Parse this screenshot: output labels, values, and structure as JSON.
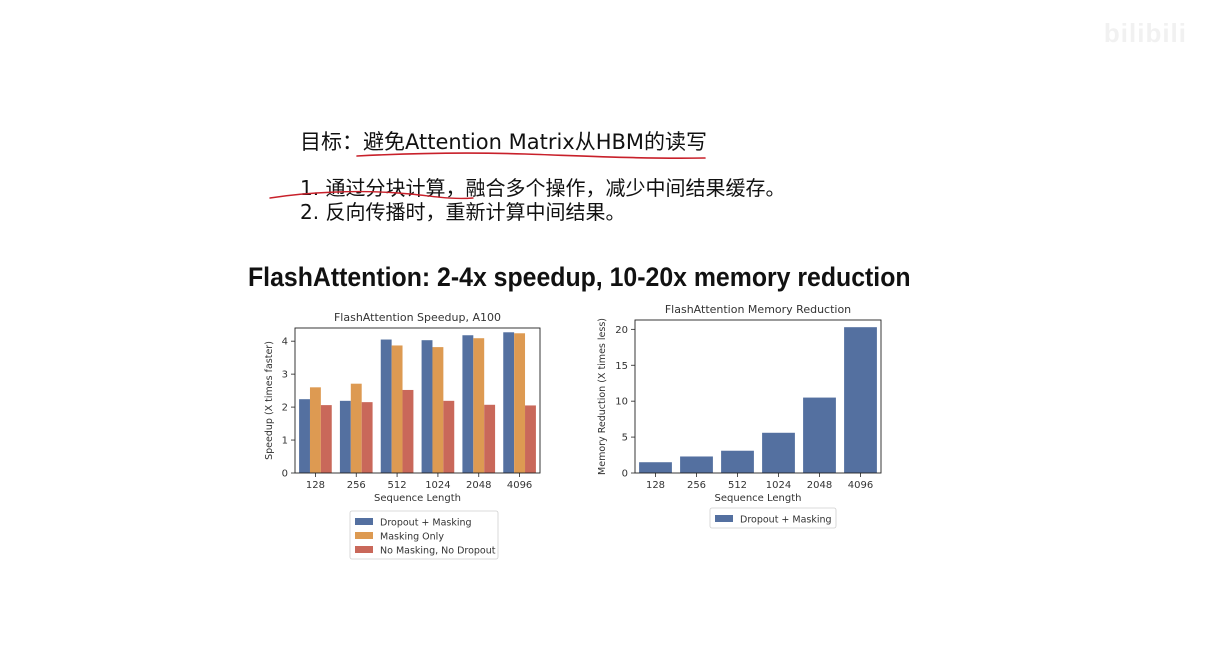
{
  "watermark": "bilibili",
  "notes": {
    "goal_label": "目标：",
    "goal_text": "避免Attention Matrix从HBM的读写",
    "items": [
      "1. 通过分块计算，融合多个操作，减少中间结果缓存。",
      "2. 反向传播时，重新计算中间结果。"
    ]
  },
  "figure_title": "FlashAttention: 2-4x speedup, 10-20x memory reduction",
  "colors": {
    "blue": "#5470a0",
    "orange": "#dd9a52",
    "red": "#c9685a",
    "ink": "#c8202a"
  },
  "chart_data": [
    {
      "type": "bar",
      "title": "FlashAttention Speedup, A100",
      "xlabel": "Sequence Length",
      "ylabel": "Speedup (X times faster)",
      "categories": [
        "128",
        "256",
        "512",
        "1024",
        "2048",
        "4096"
      ],
      "ylim": [
        0,
        4.4
      ],
      "yticks": [
        0,
        1,
        2,
        3,
        4
      ],
      "grid": false,
      "legend_position": "bottom",
      "series": [
        {
          "name": "Dropout + Masking",
          "color": "#5470a0",
          "values": [
            2.24,
            2.19,
            4.05,
            4.03,
            4.18,
            4.27
          ]
        },
        {
          "name": "Masking Only",
          "color": "#dd9a52",
          "values": [
            2.6,
            2.71,
            3.87,
            3.82,
            4.09,
            4.24
          ]
        },
        {
          "name": "No Masking, No Dropout",
          "color": "#c9685a",
          "values": [
            2.06,
            2.15,
            2.52,
            2.19,
            2.07,
            2.05
          ]
        }
      ]
    },
    {
      "type": "bar",
      "title": "FlashAttention Memory Reduction",
      "xlabel": "Sequence Length",
      "ylabel": "Memory Reduction (X times less)",
      "categories": [
        "128",
        "256",
        "512",
        "1024",
        "2048",
        "4096"
      ],
      "ylim": [
        0,
        21.3
      ],
      "yticks": [
        0,
        5,
        10,
        15,
        20
      ],
      "grid": false,
      "legend_position": "bottom",
      "series": [
        {
          "name": "Dropout + Masking",
          "color": "#5470a0",
          "values": [
            1.5,
            2.3,
            3.1,
            5.6,
            10.5,
            20.3
          ]
        }
      ]
    }
  ]
}
